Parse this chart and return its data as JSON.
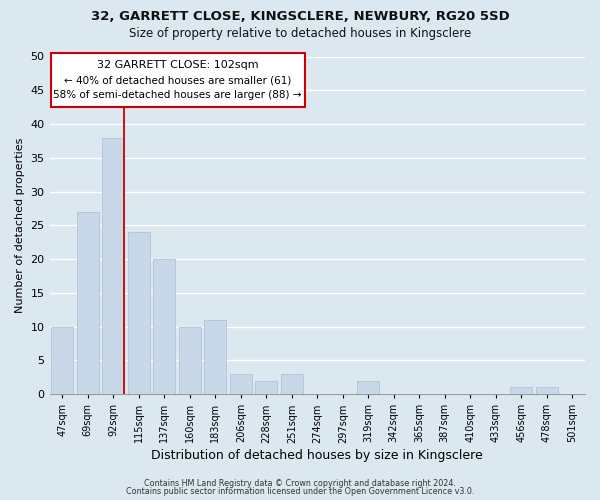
{
  "title1": "32, GARRETT CLOSE, KINGSCLERE, NEWBURY, RG20 5SD",
  "title2": "Size of property relative to detached houses in Kingsclere",
  "xlabel": "Distribution of detached houses by size in Kingsclere",
  "ylabel": "Number of detached properties",
  "bar_labels": [
    "47sqm",
    "69sqm",
    "92sqm",
    "115sqm",
    "137sqm",
    "160sqm",
    "183sqm",
    "206sqm",
    "228sqm",
    "251sqm",
    "274sqm",
    "297sqm",
    "319sqm",
    "342sqm",
    "365sqm",
    "387sqm",
    "410sqm",
    "433sqm",
    "456sqm",
    "478sqm",
    "501sqm"
  ],
  "bar_values": [
    10,
    27,
    38,
    24,
    20,
    10,
    11,
    3,
    2,
    3,
    0,
    0,
    2,
    0,
    0,
    0,
    0,
    0,
    1,
    1,
    0
  ],
  "bar_color": "#c8d8e8",
  "bar_edge_color": "#b0c4d8",
  "vline_color": "#cc0000",
  "ylim": [
    0,
    50
  ],
  "yticks": [
    0,
    5,
    10,
    15,
    20,
    25,
    30,
    35,
    40,
    45,
    50
  ],
  "annotation_title": "32 GARRETT CLOSE: 102sqm",
  "annotation_line1": "← 40% of detached houses are smaller (61)",
  "annotation_line2": "58% of semi-detached houses are larger (88) →",
  "footer1": "Contains HM Land Registry data © Crown copyright and database right 2024.",
  "footer2": "Contains public sector information licensed under the Open Government Licence v3.0.",
  "background_color": "#dce8f0",
  "plot_bg_color": "#dce8f0",
  "grid_color": "#ffffff",
  "vline_index": 2
}
